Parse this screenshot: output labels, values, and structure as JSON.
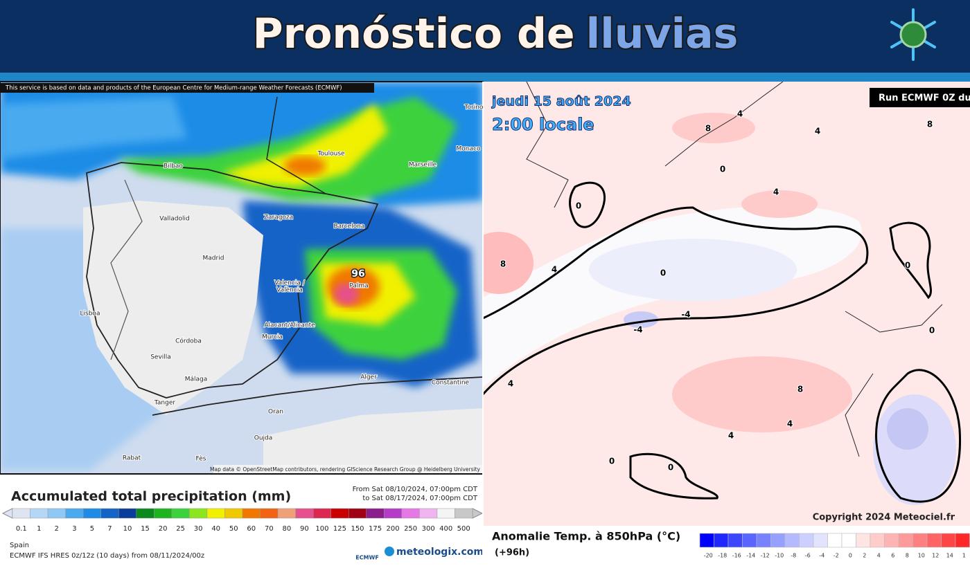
{
  "header": {
    "title_main": "Pronóstico de",
    "title_accent": "lluvias"
  },
  "left_map": {
    "attribution_top": "This service is based on data and products of the European Centre for Medium-range Weather Forecasts (ECMWF)",
    "attribution_bottom": "Map data © OpenStreetMap contributors, rendering GIScience Research Group @ Heidelberg University",
    "cities": [
      "Torino",
      "Monaco",
      "Toulouse",
      "Marseille",
      "Bilbao",
      "Valladolid",
      "Zaragoza",
      "Barcelona",
      "Madrid",
      "Valencia /",
      "València",
      "Palma",
      "Lisboa",
      "Alacant/Alicante",
      "Murcia",
      "Córdoba",
      "Sevilla",
      "Málaga",
      "Alger",
      "Constantine",
      "Tanger",
      "Oran",
      "Oujda",
      "Rabat",
      "Fès"
    ],
    "max_label": "96",
    "legend": {
      "title": "Accumulated total precipitation (mm)",
      "from": "From Sat 08/10/2024, 07:00pm CDT",
      "to": "to Sat 08/17/2024, 07:00pm CDT",
      "levels": [
        "0.1",
        "1",
        "2",
        "3",
        "5",
        "7",
        "10",
        "15",
        "20",
        "25",
        "30",
        "40",
        "50",
        "60",
        "70",
        "80",
        "90",
        "100",
        "125",
        "150",
        "175",
        "200",
        "250",
        "300",
        "400",
        "500"
      ],
      "colors": [
        "#dfe4f2",
        "#b4d7f5",
        "#8fc8f5",
        "#4aaaf0",
        "#1e8ce6",
        "#1464c8",
        "#0a3c9a",
        "#0a8a1e",
        "#1eb41e",
        "#3cd23c",
        "#8ce61e",
        "#f0f000",
        "#f0c800",
        "#f07800",
        "#f06414",
        "#f0a078",
        "#e6508c",
        "#dc2850",
        "#c80000",
        "#a00014",
        "#8c1e8c",
        "#b43cc8",
        "#e678e6",
        "#f0b4f0",
        "#f4f4f4",
        "#c8c8c8"
      ],
      "region": "Spain",
      "model": "ECMWF IFS HRES 0z/12z (10 days) from 08/11/2024/00z",
      "logo_left": "ECMWF",
      "logo_right": "meteologix.com"
    }
  },
  "right_map": {
    "date": "jeudi 15 août 2024",
    "time": "2:00 locale",
    "run": "Run ECMWF 0Z du",
    "copyright": "Copyright 2024 Meteociel.fr",
    "contour_labels": [
      "8",
      "4",
      "8",
      "4",
      "0",
      "0",
      "4",
      "8",
      "4",
      "0",
      "0",
      "-4",
      "-4",
      "8",
      "4",
      "4",
      "0",
      "0",
      "0",
      "4"
    ],
    "legend": {
      "title": "Anomalie Temp. à 850hPa (°C)",
      "lead": "(+96h)",
      "levels": [
        "-20",
        "-18",
        "-16",
        "-14",
        "-12",
        "-10",
        "-8",
        "-6",
        "-4",
        "-2",
        "0",
        "2",
        "4",
        "6",
        "8",
        "10",
        "12",
        "14",
        "1"
      ],
      "colors": [
        "#0000ff",
        "#1e28ff",
        "#3c46ff",
        "#5a64ff",
        "#7882ff",
        "#96a0ff",
        "#b4baff",
        "#ccd0ff",
        "#e2e4ff",
        "#ffffff",
        "#ffffff",
        "#ffe4e4",
        "#ffcccc",
        "#ffb4b4",
        "#ff9a9a",
        "#ff8080",
        "#ff6464",
        "#ff4646",
        "#ff2828"
      ]
    }
  }
}
